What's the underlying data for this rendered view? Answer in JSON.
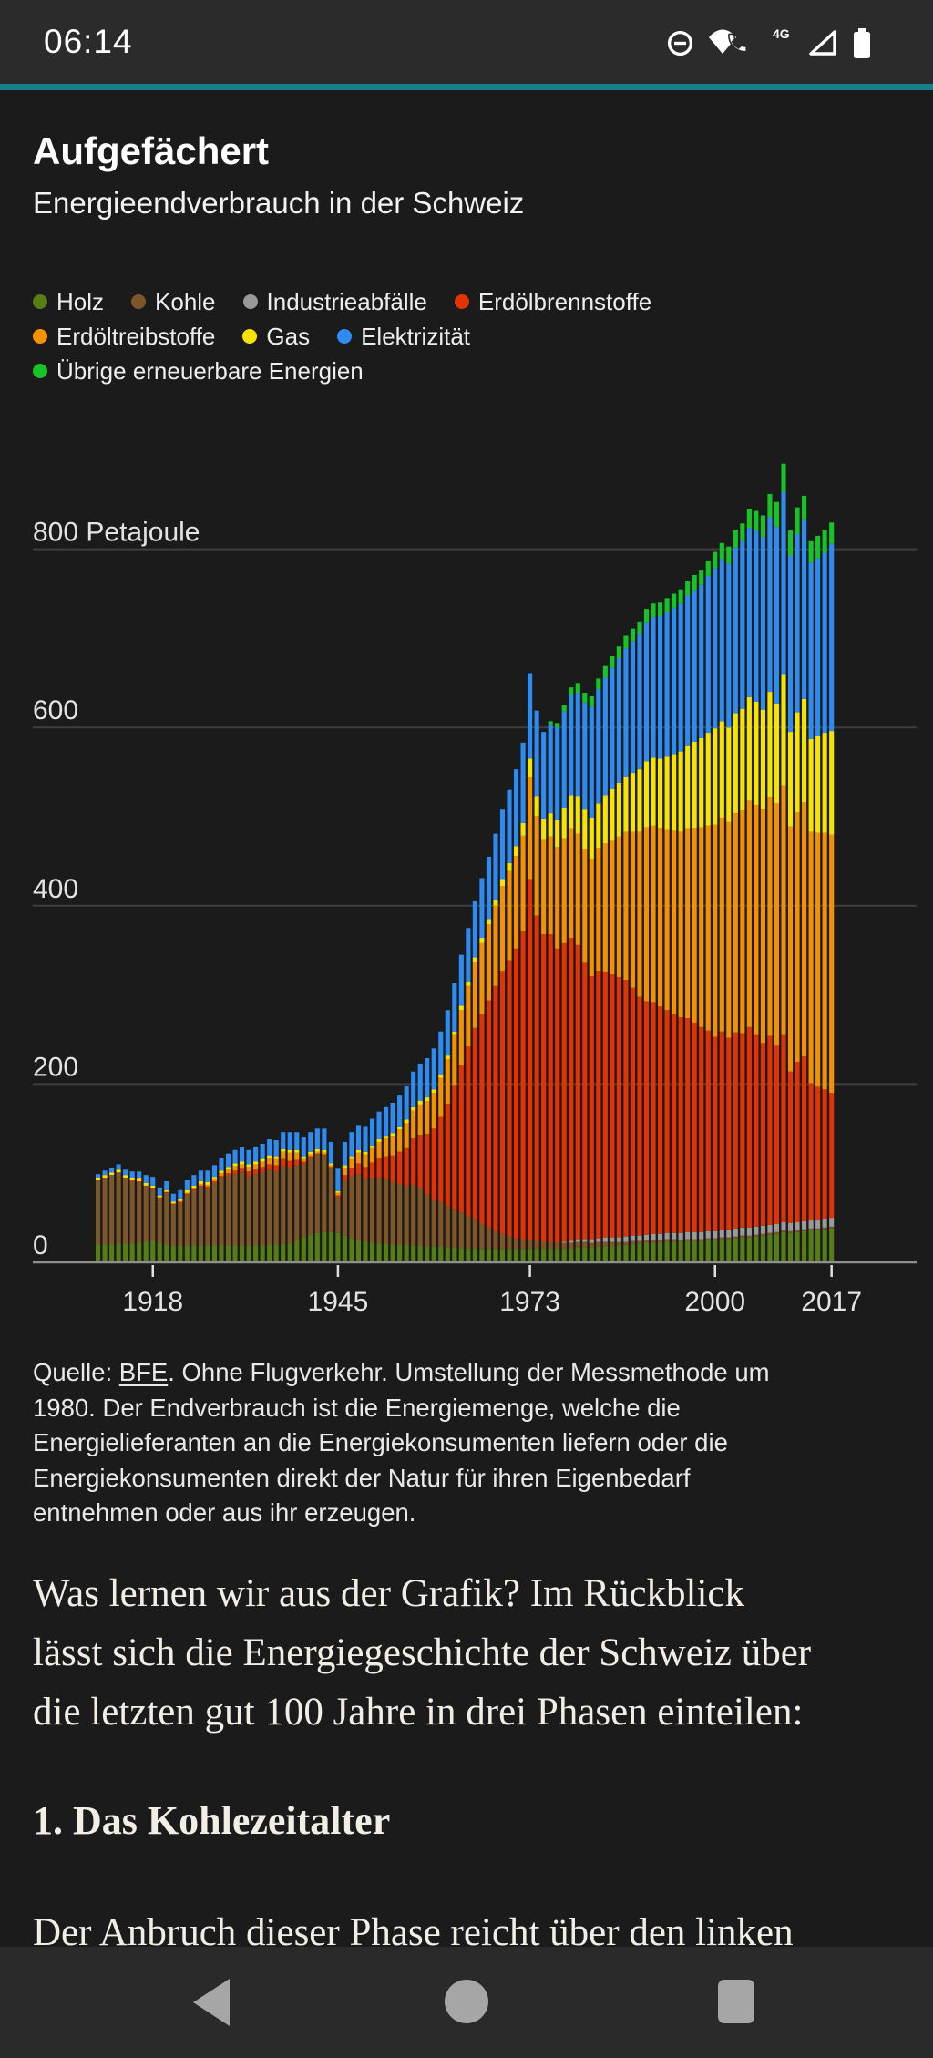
{
  "colors": {
    "page_bg": "#1b1b1b",
    "statusbar_bg": "#2b2b2b",
    "accent_teal": "#17808f",
    "navbar_bg": "#2a2a2a",
    "nav_icon": "#a6a6a6",
    "text_primary": "#ffffff",
    "text_axis": "#e3e3e3",
    "gridline": "#3f3f3f",
    "axis_zero_line": "#8f8f8f"
  },
  "status_bar": {
    "time": "06:14",
    "icons": [
      "do-not-disturb",
      "wifi-calling",
      "4g-phone",
      "signal-triangle",
      "battery"
    ],
    "network_label": "4G"
  },
  "header": {
    "title": "Aufgefächert",
    "subtitle": "Energieendverbrauch in der Schweiz"
  },
  "legend": {
    "rows": [
      4,
      3,
      1
    ],
    "items": [
      {
        "label": "Holz",
        "color": "#567d16"
      },
      {
        "label": "Kohle",
        "color": "#7d5629"
      },
      {
        "label": "Industrieabfälle",
        "color": "#9a9a9a"
      },
      {
        "label": "Erdölbrennstoffe",
        "color": "#e23305"
      },
      {
        "label": "Erdöltreibstoffe",
        "color": "#f39200"
      },
      {
        "label": "Gas",
        "color": "#f6e400"
      },
      {
        "label": "Elektrizität",
        "color": "#2e8cf0"
      },
      {
        "label": "Übrige erneuerbare Energien",
        "color": "#17c428"
      }
    ]
  },
  "chart_data": {
    "type": "bar",
    "stacked": true,
    "title": "Energieendverbrauch in der Schweiz",
    "unit": "Petajoule",
    "year_start": 1910,
    "year_end": 2017,
    "y_ticks": [
      0,
      200,
      400,
      600,
      800
    ],
    "y_tick_labels": [
      "0",
      "200",
      "400",
      "600",
      "800 Petajoule"
    ],
    "x_ticks": [
      1918,
      1945,
      1973,
      2000,
      2017
    ],
    "ylim": [
      0,
      920
    ],
    "grid": true,
    "legend_position": "top",
    "series": [
      {
        "name": "Holz",
        "color": "#567d16",
        "values": [
          20,
          20,
          20,
          21,
          21,
          21,
          22,
          23,
          24,
          22,
          20,
          19,
          19,
          19,
          19,
          19,
          19,
          19,
          19,
          19,
          19,
          19,
          19,
          19,
          19,
          20,
          20,
          20,
          21,
          24,
          28,
          31,
          33,
          34,
          34,
          33,
          30,
          27,
          25,
          23,
          22,
          21,
          21,
          20,
          20,
          20,
          19,
          19,
          18,
          18,
          18,
          17,
          17,
          16,
          16,
          16,
          15,
          15,
          15,
          15,
          15,
          15,
          15,
          15,
          15,
          15,
          15,
          15,
          15,
          16,
          17,
          17,
          17,
          18,
          18,
          18,
          19,
          19,
          20,
          21,
          22,
          22,
          22,
          23,
          23,
          23,
          24,
          24,
          24,
          25,
          25,
          26,
          26,
          27,
          28,
          28,
          29,
          30,
          31,
          32,
          34,
          33,
          34,
          35,
          36,
          36,
          37,
          38
        ]
      },
      {
        "name": "Kohle",
        "color": "#7d5629",
        "values": [
          72,
          75,
          78,
          80,
          74,
          70,
          68,
          62,
          58,
          50,
          58,
          46,
          48,
          57,
          62,
          66,
          64,
          70,
          75,
          78,
          80,
          82,
          78,
          80,
          82,
          84,
          82,
          88,
          85,
          85,
          82,
          86,
          88,
          86,
          72,
          40,
          62,
          70,
          74,
          70,
          72,
          74,
          72,
          70,
          68,
          66,
          68,
          64,
          58,
          52,
          50,
          46,
          42,
          40,
          36,
          32,
          28,
          24,
          20,
          17,
          14,
          12,
          11,
          10,
          9,
          8,
          8,
          7,
          7,
          6,
          6,
          6,
          5,
          5,
          5,
          5,
          4,
          4,
          4,
          3,
          3,
          3,
          3,
          3,
          3,
          2,
          2,
          2,
          2,
          2,
          2,
          2,
          2,
          2,
          2,
          2,
          2,
          2,
          2,
          2,
          2,
          2,
          2,
          2,
          2,
          2,
          2,
          2
        ]
      },
      {
        "name": "Industrieabfälle",
        "color": "#9a9a9a",
        "values": [
          0,
          0,
          0,
          0,
          0,
          0,
          0,
          0,
          0,
          0,
          0,
          0,
          0,
          0,
          0,
          0,
          0,
          0,
          0,
          0,
          0,
          0,
          0,
          0,
          0,
          0,
          0,
          0,
          0,
          0,
          0,
          0,
          0,
          0,
          0,
          0,
          0,
          0,
          0,
          0,
          0,
          0,
          0,
          0,
          0,
          0,
          0,
          0,
          0,
          0,
          0,
          0,
          0,
          0,
          0,
          0,
          0,
          0,
          0,
          0,
          0,
          0,
          0,
          0,
          0,
          0,
          0,
          0,
          1,
          2,
          3,
          3,
          4,
          4,
          5,
          5,
          5,
          6,
          6,
          6,
          6,
          7,
          7,
          7,
          7,
          8,
          8,
          8,
          8,
          8,
          8,
          9,
          9,
          9,
          9,
          9,
          9,
          9,
          9,
          9,
          9,
          9,
          9,
          9,
          9,
          9,
          10,
          10
        ]
      },
      {
        "name": "Erdölbrennstoffe",
        "color": "#e23305",
        "values": [
          0,
          0,
          0,
          0,
          0,
          1,
          1,
          1,
          1,
          1,
          1,
          1,
          1,
          1,
          1,
          1,
          2,
          2,
          3,
          3,
          4,
          4,
          5,
          5,
          6,
          6,
          7,
          8,
          8,
          6,
          3,
          2,
          1,
          1,
          1,
          2,
          6,
          9,
          12,
          14,
          18,
          22,
          26,
          30,
          36,
          42,
          52,
          60,
          68,
          80,
          95,
          115,
          140,
          165,
          190,
          215,
          235,
          255,
          275,
          295,
          310,
          325,
          345,
          405,
          365,
          345,
          345,
          330,
          335,
          340,
          330,
          310,
          295,
          300,
          298,
          295,
          292,
          288,
          278,
          268,
          262,
          260,
          255,
          250,
          246,
          242,
          240,
          235,
          230,
          225,
          218,
          222,
          215,
          220,
          218,
          225,
          215,
          205,
          212,
          200,
          210,
          170,
          180,
          185,
          154,
          150,
          145,
          140
        ]
      },
      {
        "name": "Erdöltreibstoffe",
        "color": "#f39200",
        "values": [
          0,
          0,
          0,
          0,
          0,
          0,
          0,
          0,
          0,
          0,
          0,
          0,
          1,
          1,
          1,
          2,
          2,
          2,
          3,
          4,
          5,
          5,
          5,
          6,
          6,
          7,
          7,
          8,
          9,
          8,
          3,
          2,
          2,
          2,
          2,
          3,
          8,
          10,
          12,
          14,
          16,
          18,
          20,
          22,
          25,
          28,
          31,
          34,
          37,
          40,
          44,
          50,
          56,
          62,
          68,
          74,
          80,
          85,
          90,
          95,
          100,
          104,
          108,
          115,
          112,
          106,
          110,
          114,
          118,
          122,
          125,
          128,
          132,
          138,
          144,
          150,
          158,
          166,
          175,
          185,
          195,
          198,
          200,
          202,
          205,
          208,
          212,
          218,
          224,
          230,
          238,
          240,
          242,
          246,
          250,
          254,
          258,
          262,
          268,
          272,
          280,
          275,
          280,
          285,
          282,
          285,
          288,
          290
        ]
      },
      {
        "name": "Gas",
        "color": "#f6e400",
        "values": [
          3,
          3,
          3,
          3,
          3,
          3,
          3,
          3,
          3,
          2,
          2,
          2,
          2,
          3,
          3,
          3,
          3,
          3,
          3,
          3,
          3,
          3,
          3,
          3,
          3,
          3,
          3,
          3,
          3,
          3,
          3,
          3,
          3,
          3,
          2,
          2,
          3,
          3,
          3,
          3,
          3,
          3,
          3,
          3,
          3,
          4,
          4,
          4,
          4,
          4,
          4,
          4,
          4,
          5,
          5,
          5,
          6,
          6,
          7,
          8,
          9,
          11,
          14,
          20,
          22,
          23,
          26,
          30,
          34,
          38,
          42,
          44,
          46,
          50,
          54,
          58,
          60,
          62,
          66,
          70,
          74,
          76,
          78,
          82,
          86,
          90,
          94,
          97,
          100,
          104,
          108,
          108,
          106,
          112,
          114,
          116,
          116,
          112,
          118,
          112,
          124,
          106,
          112,
          116,
          104,
          108,
          112,
          116
        ]
      },
      {
        "name": "Elektrizität",
        "color": "#2e8cf0",
        "values": [
          4,
          5,
          5,
          6,
          6,
          7,
          8,
          9,
          10,
          9,
          10,
          9,
          10,
          11,
          12,
          12,
          13,
          13,
          14,
          15,
          15,
          16,
          16,
          17,
          17,
          18,
          18,
          19,
          20,
          20,
          21,
          22,
          23,
          24,
          24,
          25,
          26,
          27,
          28,
          29,
          30,
          31,
          32,
          34,
          36,
          38,
          40,
          42,
          44,
          46,
          48,
          51,
          54,
          57,
          60,
          63,
          67,
          70,
          74,
          78,
          82,
          86,
          90,
          96,
          96,
          98,
          100,
          104,
          108,
          112,
          116,
          120,
          124,
          128,
          132,
          136,
          140,
          144,
          148,
          152,
          156,
          158,
          160,
          162,
          164,
          166,
          168,
          170,
          172,
          176,
          180,
          182,
          184,
          186,
          188,
          190,
          192,
          194,
          196,
          198,
          205,
          198,
          200,
          202,
          198,
          200,
          202,
          210
        ]
      },
      {
        "name": "Übrige erneuerbare Energien",
        "color": "#17c428",
        "values": [
          0,
          0,
          0,
          0,
          0,
          0,
          0,
          0,
          0,
          0,
          0,
          0,
          0,
          0,
          0,
          0,
          0,
          0,
          0,
          0,
          0,
          0,
          0,
          0,
          0,
          0,
          0,
          0,
          0,
          0,
          0,
          0,
          0,
          0,
          0,
          0,
          0,
          0,
          0,
          0,
          0,
          0,
          0,
          0,
          0,
          0,
          0,
          0,
          0,
          0,
          0,
          0,
          0,
          0,
          0,
          0,
          0,
          0,
          0,
          0,
          0,
          0,
          0,
          0,
          0,
          0,
          3,
          5,
          7,
          9,
          11,
          11,
          12,
          12,
          13,
          13,
          13,
          14,
          14,
          14,
          15,
          15,
          15,
          16,
          16,
          16,
          16,
          17,
          17,
          17,
          18,
          18,
          19,
          20,
          20,
          21,
          22,
          24,
          26,
          28,
          32,
          28,
          30,
          26,
          24,
          25,
          26,
          24
        ]
      }
    ]
  },
  "source": {
    "prefix": "Quelle: ",
    "link_label": "BFE",
    "line1_rest": ". Ohne Flugverkehr. Umstellung der Messmethode um",
    "lines": [
      "1980. Der Endverbrauch ist die Energiemenge, welche die",
      "Energielieferanten an die Energiekonsumenten liefern oder die",
      "Energiekonsumenten direkt der Natur für ihren Eigenbedarf",
      "entnehmen oder aus ihr erzeugen."
    ]
  },
  "article": {
    "paragraph_lines": [
      "Was lernen wir aus der Grafik? Im Rückblick",
      "lässt sich die Energiegeschichte der Schweiz über",
      "die letzten gut 100 Jahre in drei Phasen einteilen:"
    ],
    "heading": "1. Das Kohlezeitalter",
    "partial_line": "Der Anbruch dieser Phase reicht über den linken"
  },
  "navigation": {
    "back": "back",
    "home": "home",
    "recents": "recents"
  }
}
